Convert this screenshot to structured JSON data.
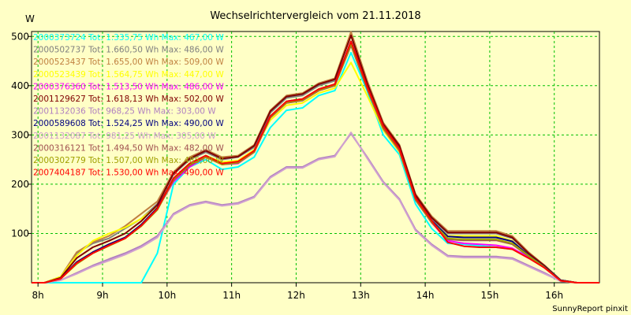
{
  "chart_data": {
    "type": "line",
    "title": "Wechselrichtervergleich vom 21.11.2018",
    "ylabel": "W",
    "xlabel": "",
    "footer": "SunnyReport pinxit",
    "xlim": [
      7.9,
      16.7
    ],
    "ylim": [
      0,
      510
    ],
    "x_ticks": [
      8,
      9,
      10,
      11,
      12,
      13,
      14,
      15,
      16
    ],
    "x_tick_labels": [
      "8h",
      "9h",
      "10h",
      "11h",
      "12h",
      "13h",
      "14h",
      "15h",
      "16h"
    ],
    "y_ticks": [
      100,
      200,
      300,
      400,
      500
    ],
    "y_tick_labels": [
      "100",
      "200",
      "300",
      "400",
      "500"
    ],
    "grid": true,
    "legend_position": "top-left",
    "x": [
      7.9,
      8.1,
      8.35,
      8.6,
      8.85,
      9.1,
      9.35,
      9.6,
      9.85,
      10.1,
      10.35,
      10.6,
      10.85,
      11.1,
      11.35,
      11.6,
      11.85,
      12.1,
      12.35,
      12.6,
      12.85,
      13.1,
      13.35,
      13.6,
      13.85,
      14.1,
      14.35,
      14.6,
      14.85,
      15.1,
      15.35,
      15.6,
      15.85,
      16.1,
      16.35,
      16.7
    ],
    "series": [
      {
        "name": "2000373724 Tot: 1.335,75 Wh Max: 467,00 W",
        "color": "#00ffff",
        "values": [
          0,
          0,
          0,
          0,
          0,
          0,
          0,
          0,
          60,
          200,
          235,
          250,
          230,
          235,
          255,
          315,
          350,
          355,
          380,
          390,
          467,
          390,
          300,
          260,
          160,
          110,
          80,
          78,
          75,
          72,
          68,
          55,
          35,
          5,
          0,
          0
        ]
      },
      {
        "name": "2000502737 Tot: 1.660,50 Wh Max: 486,00 W",
        "color": "#808080",
        "values": [
          0,
          0,
          10,
          60,
          80,
          90,
          110,
          130,
          160,
          220,
          250,
          265,
          250,
          255,
          275,
          345,
          375,
          380,
          400,
          410,
          486,
          400,
          320,
          275,
          175,
          130,
          100,
          100,
          100,
          100,
          90,
          60,
          35,
          5,
          0,
          0
        ]
      },
      {
        "name": "2000523437 Tot: 1.655,00 Wh Max: 509,00 W",
        "color": "#c08040",
        "values": [
          0,
          0,
          12,
          62,
          82,
          95,
          115,
          140,
          165,
          225,
          255,
          270,
          255,
          258,
          280,
          350,
          380,
          385,
          405,
          415,
          509,
          410,
          325,
          280,
          180,
          135,
          105,
          105,
          105,
          105,
          95,
          62,
          35,
          5,
          0,
          0
        ]
      },
      {
        "name": "2000523439 Tot: 1.564,75 Wh Max: 447,00 W",
        "color": "#ffff00",
        "values": [
          0,
          0,
          12,
          55,
          85,
          100,
          112,
          130,
          155,
          210,
          240,
          258,
          245,
          248,
          270,
          330,
          360,
          365,
          385,
          395,
          447,
          380,
          310,
          265,
          170,
          125,
          95,
          95,
          95,
          95,
          85,
          55,
          32,
          5,
          0,
          0
        ]
      },
      {
        "name": "2000376360 Tot: 1.513,50 Wh Max: 486,00 W",
        "color": "#ff00ff",
        "values": [
          0,
          0,
          8,
          40,
          62,
          78,
          92,
          115,
          150,
          205,
          235,
          255,
          240,
          242,
          265,
          335,
          365,
          370,
          390,
          400,
          486,
          395,
          315,
          268,
          170,
          122,
          85,
          80,
          78,
          76,
          70,
          52,
          30,
          4,
          0,
          0
        ]
      },
      {
        "name": "2001129627 Tot: 1.618,13 Wh Max: 502,00 W",
        "color": "#800000",
        "values": [
          0,
          0,
          10,
          50,
          72,
          85,
          100,
          125,
          158,
          222,
          252,
          268,
          252,
          256,
          278,
          348,
          378,
          383,
          403,
          413,
          502,
          405,
          322,
          278,
          178,
          132,
          102,
          102,
          102,
          102,
          92,
          60,
          34,
          5,
          0,
          0
        ]
      },
      {
        "name": "2001132036 Tot: 968,25 Wh Max: 303,00 W",
        "color": "#b080c0",
        "values": [
          0,
          0,
          5,
          20,
          35,
          48,
          60,
          75,
          95,
          140,
          158,
          165,
          158,
          162,
          175,
          215,
          235,
          235,
          252,
          258,
          303,
          255,
          205,
          170,
          108,
          78,
          55,
          53,
          53,
          53,
          50,
          35,
          20,
          3,
          0,
          0
        ]
      },
      {
        "name": "2000589608 Tot: 1.524,25 Wh Max: 490,00 W",
        "color": "#000080",
        "values": [
          0,
          0,
          8,
          42,
          62,
          78,
          92,
          118,
          152,
          212,
          242,
          258,
          242,
          245,
          268,
          338,
          368,
          373,
          393,
          403,
          490,
          398,
          318,
          272,
          172,
          126,
          94,
          92,
          92,
          92,
          84,
          56,
          32,
          5,
          0,
          0
        ]
      },
      {
        "name": "2001132087 Tot: 981,25 Wh Max: 305,00 W",
        "color": "#d0a0d0",
        "values": [
          0,
          0,
          5,
          18,
          33,
          45,
          57,
          72,
          92,
          138,
          156,
          163,
          156,
          160,
          173,
          213,
          233,
          233,
          250,
          256,
          305,
          253,
          203,
          168,
          106,
          76,
          53,
          51,
          51,
          51,
          48,
          33,
          18,
          3,
          0,
          0
        ]
      },
      {
        "name": "2000316121 Tot: 1.494,50 Wh Max: 482,00 W",
        "color": "#a05050",
        "values": [
          0,
          0,
          8,
          40,
          60,
          75,
          90,
          115,
          148,
          208,
          238,
          255,
          240,
          243,
          265,
          335,
          365,
          370,
          390,
          400,
          482,
          393,
          313,
          268,
          168,
          122,
          88,
          86,
          86,
          86,
          78,
          54,
          30,
          4,
          0,
          0
        ]
      },
      {
        "name": "2000302779 Tot: 1.507,00 Wh Max: 485,00 W",
        "color": "#a0a000",
        "values": [
          0,
          0,
          8,
          38,
          60,
          75,
          90,
          115,
          148,
          210,
          240,
          256,
          240,
          244,
          266,
          336,
          366,
          371,
          391,
          401,
          485,
          396,
          316,
          270,
          170,
          124,
          90,
          88,
          88,
          88,
          80,
          55,
          31,
          4,
          0,
          0
        ]
      },
      {
        "name": "2007404187 Tot: 1.530,00 Wh Max: 490,00 W",
        "color": "#ff0000",
        "values": [
          0,
          0,
          8,
          40,
          60,
          76,
          90,
          116,
          150,
          212,
          242,
          258,
          242,
          246,
          268,
          338,
          368,
          373,
          393,
          403,
          490,
          398,
          318,
          272,
          172,
          126,
          82,
          74,
          72,
          72,
          68,
          50,
          30,
          4,
          0,
          0
        ]
      }
    ]
  }
}
